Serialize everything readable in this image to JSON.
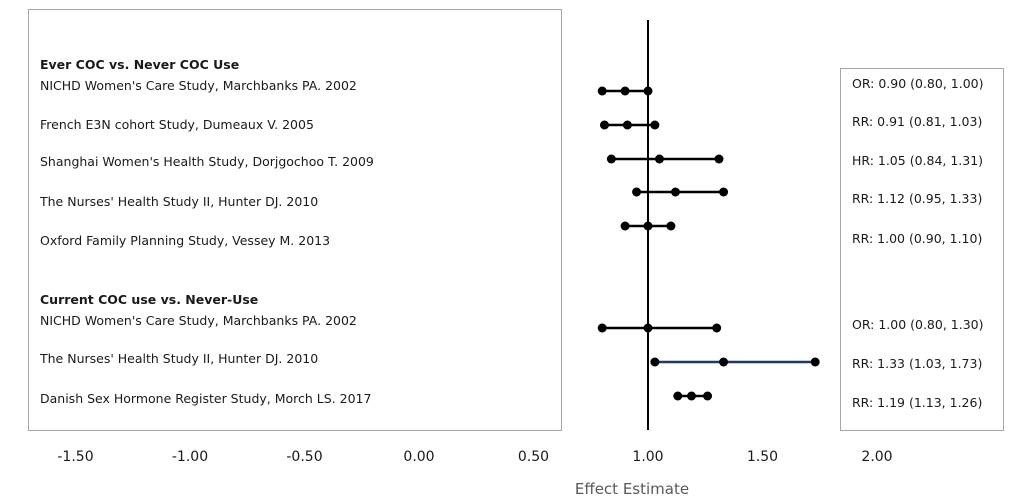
{
  "chart_data": {
    "type": "forest",
    "xlabel": "Effect Estimate",
    "xlim": [
      -1.75,
      2.25
    ],
    "x_ticks": [
      "-1.50",
      "-1.00",
      "-0.50",
      "0.00",
      "0.50",
      "1.00",
      "1.50",
      "2.00"
    ],
    "x_tick_values": [
      -1.5,
      -1.0,
      -0.5,
      0.0,
      0.5,
      1.0,
      1.5,
      2.0
    ],
    "reference_line": 1.0,
    "grid": false,
    "sections": [
      {
        "title": "Ever COC vs. Never COC Use",
        "studies": [
          {
            "label": "NICHD Women's Care Study, Marchbanks PA. 2002",
            "estimate": 0.9,
            "lower": 0.8,
            "upper": 1.0,
            "text": "OR: 0.90 (0.80, 1.00)"
          },
          {
            "label": "French E3N cohort Study, Dumeaux V. 2005",
            "estimate": 0.91,
            "lower": 0.81,
            "upper": 1.03,
            "text": "RR: 0.91 (0.81, 1.03)"
          },
          {
            "label": "Shanghai Women's Health Study, Dorjgochoo T. 2009",
            "estimate": 1.05,
            "lower": 0.84,
            "upper": 1.31,
            "text": "HR: 1.05 (0.84, 1.31)"
          },
          {
            "label": "The Nurses' Health Study II, Hunter DJ. 2010",
            "estimate": 1.12,
            "lower": 0.95,
            "upper": 1.33,
            "text": "RR: 1.12 (0.95, 1.33)"
          },
          {
            "label": "Oxford Family Planning Study, Vessey M. 2013",
            "estimate": 1.0,
            "lower": 0.9,
            "upper": 1.1,
            "text": "RR: 1.00 (0.90, 1.10)"
          }
        ]
      },
      {
        "title": "Current COC use vs. Never-Use",
        "studies": [
          {
            "label": "NICHD Women's Care Study, Marchbanks PA. 2002",
            "estimate": 1.0,
            "lower": 0.8,
            "upper": 1.3,
            "text": "OR: 1.00 (0.80, 1.30)"
          },
          {
            "label": "The Nurses' Health Study II, Hunter DJ. 2010",
            "estimate": 1.33,
            "lower": 1.03,
            "upper": 1.73,
            "text": "RR: 1.33 (1.03, 1.73)"
          },
          {
            "label": "Danish Sex Hormone Register Study, Morch LS. 2017",
            "estimate": 1.19,
            "lower": 1.13,
            "upper": 1.26,
            "text": "RR: 1.19 (1.13, 1.26)"
          }
        ]
      }
    ]
  }
}
